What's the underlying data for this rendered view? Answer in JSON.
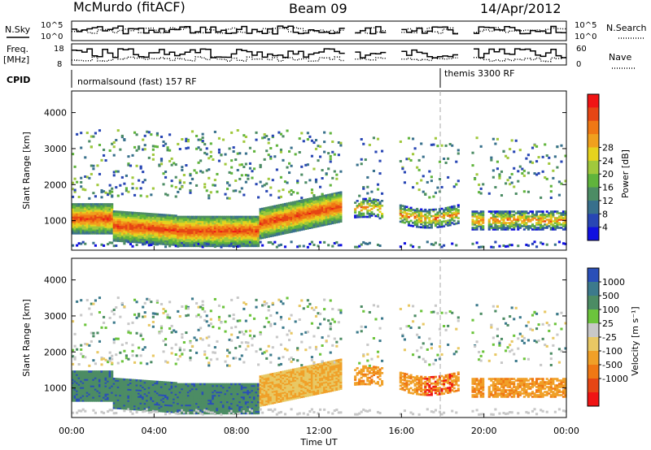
{
  "header": {
    "station": "McMurdo (fitACF)",
    "beam": "Beam 09",
    "date": "14/Apr/2012"
  },
  "strip": {
    "nsky_label": "N.Sky",
    "nsky_ticks": [
      "10^5",
      "10^0"
    ],
    "nsearch_label": "N.Search",
    "nsearch_ticks": [
      "10^5",
      "10^0"
    ],
    "freq_label_1": "Freq.",
    "freq_label_2": "[MHz]",
    "freq_ticks": [
      "18",
      "8"
    ],
    "nave_label": "Nave",
    "nave_ticks": [
      "60",
      "0"
    ],
    "cpid_label": "CPID",
    "cpid_1": "normalsound (fast) 157 RF",
    "cpid_2": "themis 3300 RF"
  },
  "chart_data": [
    {
      "type": "heatmap",
      "title": "Power",
      "ylabel": "Slant Range [km]",
      "xlabel": "Time UT",
      "x_ticks": [
        "00:00",
        "04:00",
        "08:00",
        "12:00",
        "16:00",
        "20:00",
        "00:00"
      ],
      "y_ticks": [
        1000,
        2000,
        3000,
        4000
      ],
      "ylim": [
        180,
        4600
      ],
      "colorbar": {
        "label": "Power [dB]",
        "ticks": [
          4,
          8,
          12,
          16,
          20,
          24,
          28
        ],
        "colors": [
          "#1010e0",
          "#2846b4",
          "#38708c",
          "#4c8c64",
          "#60b43c",
          "#a0c83c",
          "#e6d21e",
          "#f0a01e",
          "#f07814",
          "#e64614",
          "#f01414"
        ]
      }
    },
    {
      "type": "heatmap",
      "title": "Velocity",
      "ylabel": "Slant Range [km]",
      "xlabel": "Time UT",
      "x_ticks": [
        "00:00",
        "04:00",
        "08:00",
        "12:00",
        "16:00",
        "20:00",
        "00:00"
      ],
      "y_ticks": [
        1000,
        2000,
        3000,
        4000
      ],
      "ylim": [
        180,
        4600
      ],
      "colorbar": {
        "label": "Velocity [m s⁻¹]",
        "ticks": [
          1000,
          500,
          100,
          25,
          -25,
          -100,
          -500,
          -1000
        ],
        "colors": [
          "#2a4fb8",
          "#3c7a8c",
          "#4c8c64",
          "#6cc43c",
          "#c8c8c8",
          "#e8c864",
          "#f0a028",
          "#f07814",
          "#e64614",
          "#f01414"
        ]
      }
    }
  ],
  "axis": {
    "time_label": "Time UT"
  }
}
